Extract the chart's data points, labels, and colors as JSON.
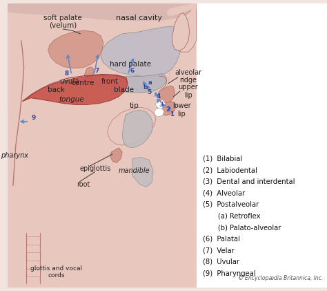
{
  "bg_color": "#f2e4de",
  "skin_outer": "#e8c8be",
  "skin_mid": "#d4988a",
  "skin_dark": "#b87870",
  "tongue_col": "#c85850",
  "palate_gray": "#b8b4c0",
  "nasal_gray": "#c0bcc8",
  "white_bg": "#ffffff",
  "legend_items": [
    "(1)  Bilabial",
    "(2)  Labiodental",
    "(3)  Dental and interdental",
    "(4)  Alveolar",
    "(5)  Postalveolar",
    "       (a) Retroflex",
    "       (b) Palato-alveolar",
    "(6)  Palatal",
    "(7)  Velar",
    "(8)  Uvular",
    "(9)  Pharyngeal"
  ],
  "copyright": "© Encyclopædia Britannica, Inc."
}
